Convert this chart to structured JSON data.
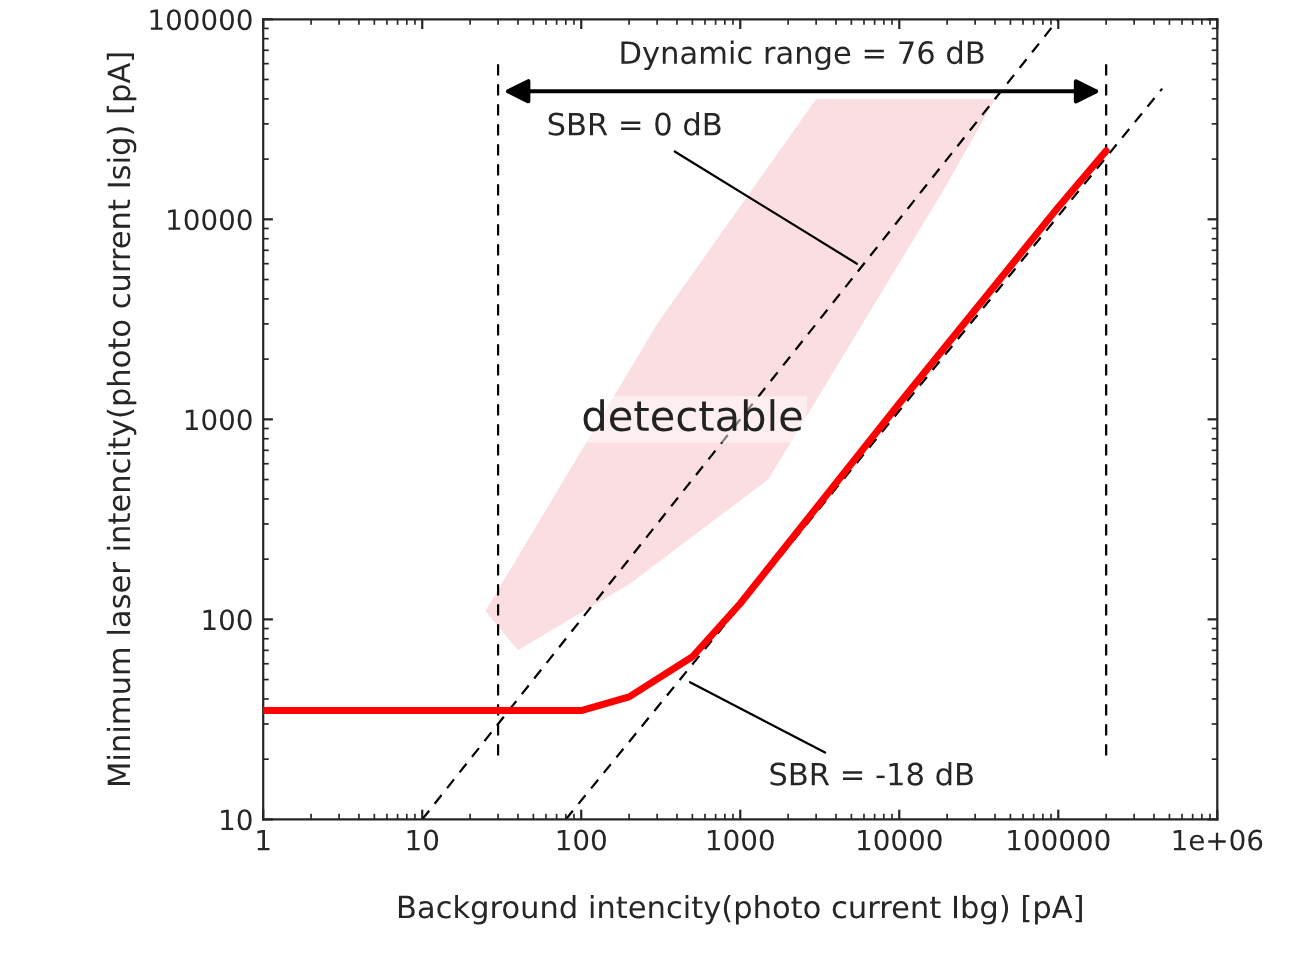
{
  "chart_data": {
    "type": "line",
    "xlabel": "Background intencity(photo current Ibg) [pA]",
    "ylabel": "Minimum laser intencity(photo current Isig) [pA]",
    "log": "xy",
    "grid": false,
    "xlim": [
      1,
      1000000
    ],
    "ylim": [
      10,
      100000
    ],
    "xticks": [
      1,
      10,
      100,
      1000,
      10000,
      100000,
      {
        "value": 1000000,
        "label": "1e+06"
      }
    ],
    "yticks": [
      10,
      100,
      1000,
      10000,
      100000
    ],
    "series": [
      {
        "color": "#ff0000",
        "line_style": "solid",
        "x": [
          1,
          100,
          200,
          500,
          1000,
          10000,
          100000,
          200000
        ],
        "values": [
          35,
          35,
          41,
          65,
          120,
          1200,
          11500,
          22000
        ]
      },
      {
        "color": "#000000",
        "line_style": "dashed",
        "x": [
          10,
          100000
        ],
        "values": [
          10,
          100000
        ]
      },
      {
        "color": "#000000",
        "line_style": "dashed",
        "x": [
          80,
          450000
        ],
        "values": [
          10,
          45000
        ]
      }
    ],
    "ref_lines": [
      {
        "axis": "x",
        "value": 30,
        "color": "#000000",
        "line_style": "dashed"
      },
      {
        "axis": "x",
        "value": 200000,
        "color": "#000000",
        "line_style": "dashed"
      }
    ],
    "annotations": [
      "Dynamic range = 76 dB",
      {
        "text": "SBR = 0 dB",
        "x": 5800,
        "y": 5800
      },
      {
        "text": "SBR = -18 dB",
        "x": 450,
        "y": 50
      },
      "detectable"
    ]
  }
}
